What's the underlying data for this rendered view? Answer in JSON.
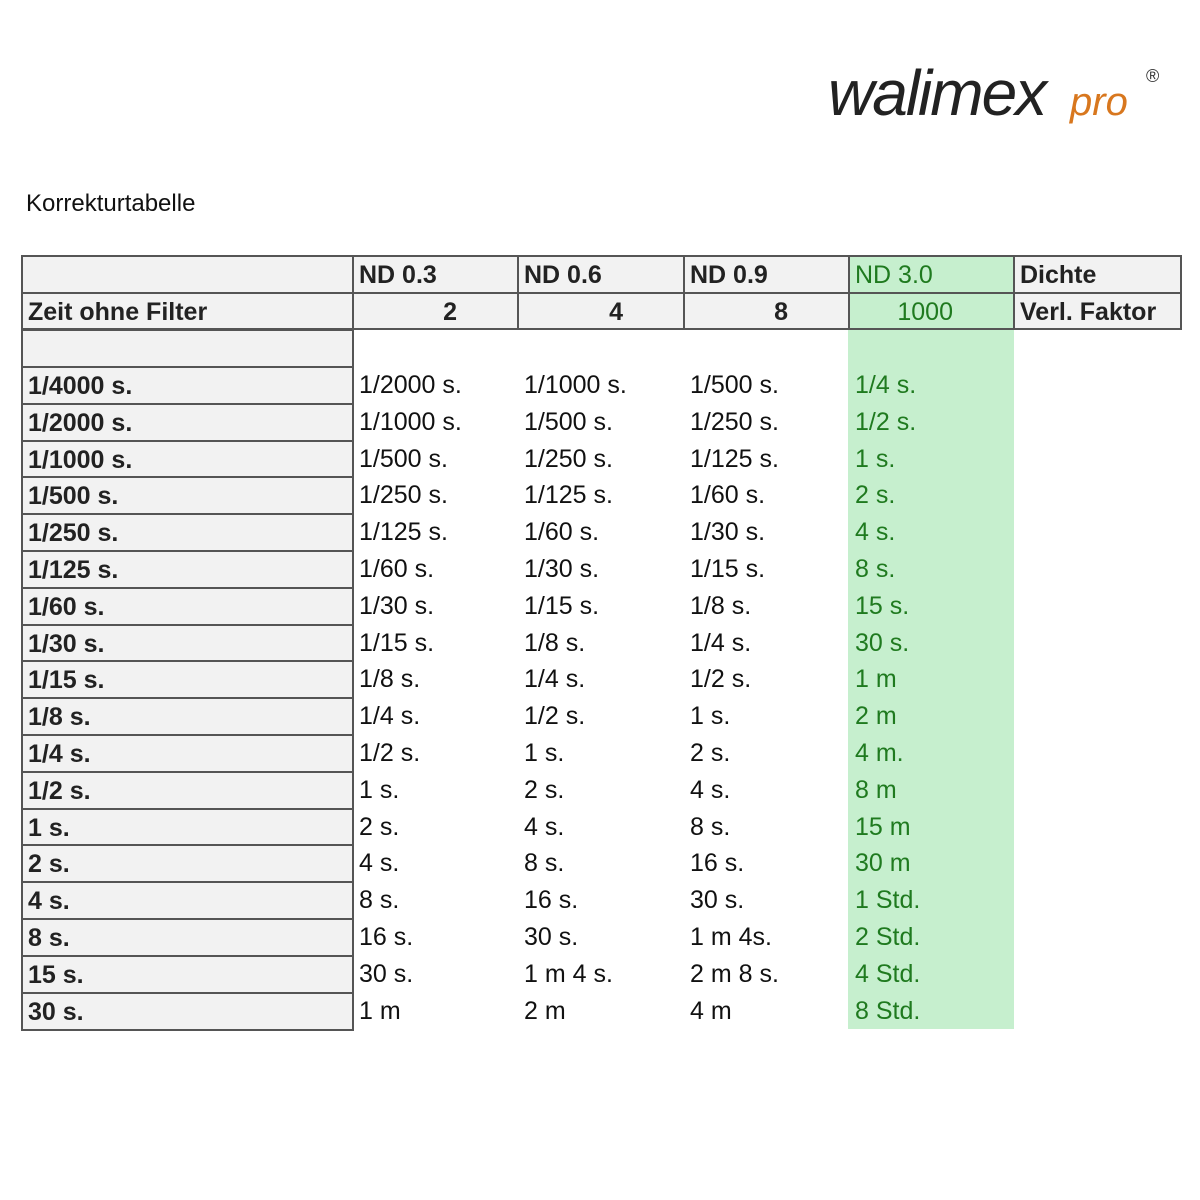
{
  "logo": {
    "word": "walimex",
    "sub": "pro",
    "reg": "®",
    "colors": {
      "main": "#222222",
      "pro": "#d8771e"
    }
  },
  "title": "Korrekturtabelle",
  "colors": {
    "highlight_bg": "#c6efce",
    "highlight_text": "#1f7a1f",
    "header_bg": "#f2f2f2"
  },
  "header": {
    "row1": [
      "",
      "ND 0.3",
      "ND 0.6",
      "ND 0.9",
      "ND 3.0",
      "Dichte"
    ],
    "row2": [
      "Zeit ohne Filter",
      "2",
      "4",
      "8",
      "1000",
      "Verl. Faktor"
    ]
  },
  "rows": [
    [
      "1/4000 s.",
      "1/2000 s.",
      "1/1000 s.",
      "1/500 s.",
      "1/4 s."
    ],
    [
      "1/2000 s.",
      "1/1000 s.",
      "1/500 s.",
      "1/250 s.",
      "1/2 s."
    ],
    [
      "1/1000 s.",
      "1/500 s.",
      "1/250 s.",
      "1/125 s.",
      "1 s."
    ],
    [
      "1/500 s.",
      "1/250 s.",
      "1/125 s.",
      "1/60 s.",
      "2 s."
    ],
    [
      "1/250 s.",
      "1/125 s.",
      "1/60 s.",
      "1/30 s.",
      "4 s."
    ],
    [
      "1/125 s.",
      "1/60 s.",
      "1/30 s.",
      "1/15 s.",
      "8 s."
    ],
    [
      "1/60 s.",
      "1/30 s.",
      "1/15 s.",
      "1/8 s.",
      "15 s."
    ],
    [
      "1/30 s.",
      "1/15 s.",
      "1/8 s.",
      "1/4 s.",
      "30 s."
    ],
    [
      "1/15 s.",
      "1/8 s.",
      "1/4 s.",
      "1/2 s.",
      "1 m"
    ],
    [
      "1/8 s.",
      "1/4 s.",
      "1/2 s.",
      "1 s.",
      "2 m"
    ],
    [
      "1/4 s.",
      "1/2 s.",
      "1 s.",
      "2 s.",
      "4 m."
    ],
    [
      "1/2 s.",
      "1 s.",
      "2 s.",
      "4 s.",
      "8 m"
    ],
    [
      "1 s.",
      "2 s.",
      "4 s.",
      "8 s.",
      "15 m"
    ],
    [
      "2 s.",
      "4 s.",
      "8 s.",
      "16 s.",
      "30 m"
    ],
    [
      "4 s.",
      "8 s.",
      "16 s.",
      "30 s.",
      "1 Std."
    ],
    [
      "8 s.",
      "16 s.",
      "30 s.",
      "1 m 4s.",
      "2 Std."
    ],
    [
      "15 s.",
      "30 s.",
      "1 m 4 s.",
      "2 m 8 s.",
      "4 Std."
    ],
    [
      "30 s.",
      "1 m",
      "2 m",
      "4 m",
      "8 Std."
    ]
  ]
}
